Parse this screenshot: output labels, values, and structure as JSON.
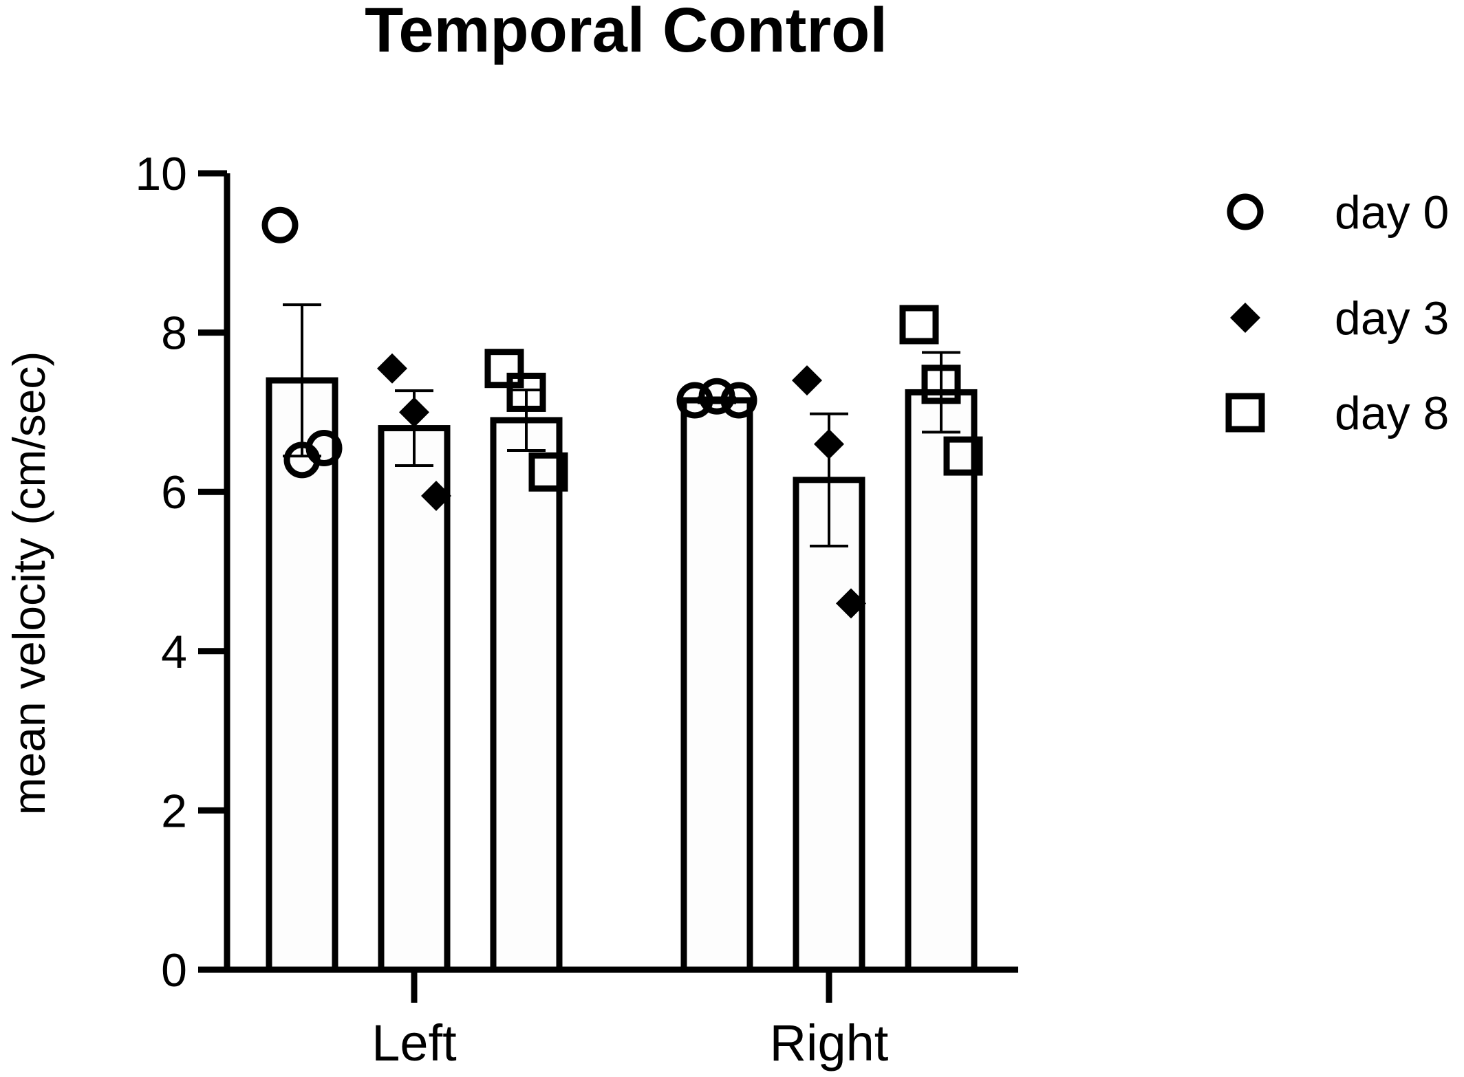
{
  "chart_data": {
    "type": "bar",
    "title": "Temporal Control",
    "xlabel": "",
    "ylabel": "mean velocity (cm/sec)",
    "ylim": [
      0,
      10
    ],
    "yticks": [
      "0",
      "2",
      "4",
      "6",
      "8",
      "10"
    ],
    "categories": [
      "Left",
      "Right"
    ],
    "legend_position": "top-right",
    "grid": false,
    "series": [
      {
        "name": "day 0",
        "marker": "circle",
        "means": [
          7.4,
          7.15
        ],
        "sem": [
          0.95,
          0.03
        ],
        "points": [
          [
            9.35,
            6.4,
            6.55
          ],
          [
            7.15,
            7.2,
            7.15
          ]
        ]
      },
      {
        "name": "day 3",
        "marker": "diamond",
        "means": [
          6.8,
          6.15
        ],
        "sem": [
          0.47,
          0.83
        ],
        "points": [
          [
            7.55,
            7.0,
            5.95
          ],
          [
            7.4,
            6.6,
            4.6
          ]
        ]
      },
      {
        "name": "day 8",
        "marker": "square",
        "means": [
          6.9,
          7.25
        ],
        "sem": [
          0.38,
          0.5
        ],
        "points": [
          [
            7.55,
            7.25,
            6.25
          ],
          [
            8.1,
            7.35,
            6.45
          ]
        ]
      }
    ]
  }
}
